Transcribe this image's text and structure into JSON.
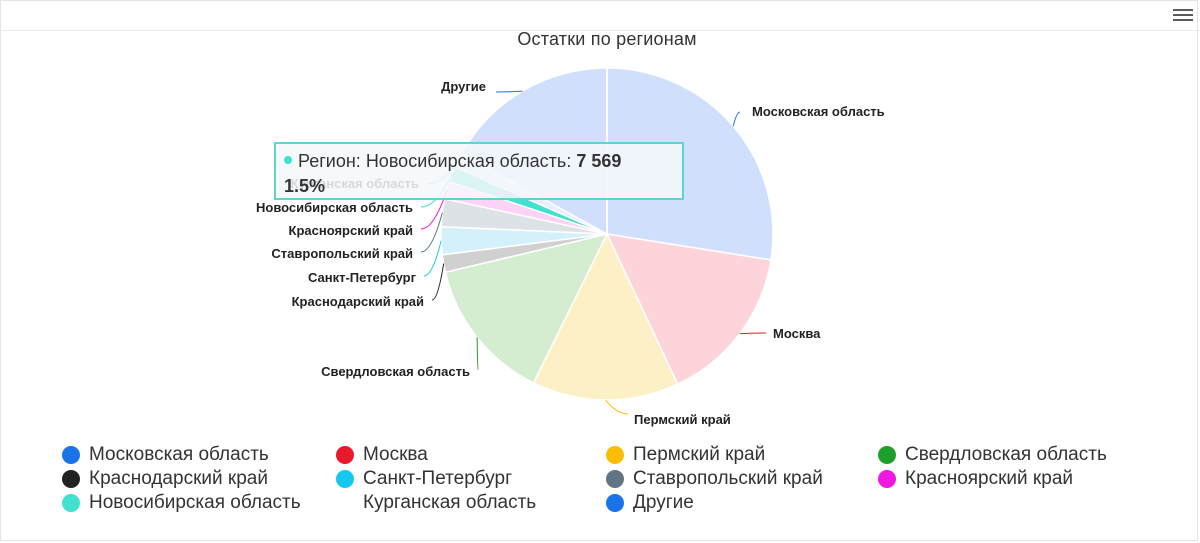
{
  "chart_data": {
    "type": "pie",
    "title": "Остатки по регионам",
    "slices": [
      {
        "label": "Московская область",
        "value": 27.5,
        "fill": "#d0e0fc",
        "legend_color": "#1a73e8"
      },
      {
        "label": "Москва",
        "value": 15.5,
        "fill": "#fcd4d9",
        "legend_color": "#e8192c"
      },
      {
        "label": "Пермский край",
        "value": 14.3,
        "fill": "#fdf0c6",
        "legend_color": "#fbbc05"
      },
      {
        "label": "Свердловская область",
        "value": 14.0,
        "fill": "#d4ecd0",
        "legend_color": "#1e9e2a"
      },
      {
        "label": "Краснодарский край",
        "value": 1.7,
        "fill": "#d0d0d0",
        "legend_color": "#222222"
      },
      {
        "label": "Санкт-Петербург",
        "value": 2.7,
        "fill": "#d3f0fb",
        "legend_color": "#16c8f0"
      },
      {
        "label": "Ставропольский край",
        "value": 2.7,
        "fill": "#dde2e6",
        "legend_color": "#5f7585"
      },
      {
        "label": "Красноярский край",
        "value": 1.7,
        "fill": "#fcd3f7",
        "legend_color": "#ee18e0"
      },
      {
        "label": "Новосибирская область",
        "value": 1.5,
        "fill": "#41e0cf",
        "legend_color": "#41e0cf"
      },
      {
        "label": "Курганская область",
        "value": 1.4,
        "fill": "#e8eefa",
        "legend_color": null
      },
      {
        "label": "Другие",
        "value": 17.0,
        "fill": "#d0e0fc",
        "legend_color": "#1a73e8"
      }
    ],
    "start_angle_deg": 0,
    "legend_placement": "bottom"
  },
  "tooltip": {
    "prefix": "Регион: ",
    "region": "Новосибирская область",
    "separator": ": ",
    "value": "7 569",
    "percent": "1.5%",
    "dot_color": "#41e0cf"
  },
  "legend": [
    {
      "label": "Московская область",
      "color": "#1a73e8"
    },
    {
      "label": "Москва",
      "color": "#e8192c"
    },
    {
      "label": "Пермский край",
      "color": "#fbbc05"
    },
    {
      "label": "Свердловская область",
      "color": "#1e9e2a"
    },
    {
      "label": "Краснодарский край",
      "color": "#222222"
    },
    {
      "label": "Санкт-Петербург",
      "color": "#16c8f0"
    },
    {
      "label": "Ставропольский край",
      "color": "#5f7585"
    },
    {
      "label": "Красноярский край",
      "color": "#ee18e0"
    },
    {
      "label": "Новосибирская область",
      "color": "#41e0cf"
    },
    {
      "label": "Курганская область",
      "color": null
    },
    {
      "label": "Другие",
      "color": "#1a73e8"
    }
  ],
  "menu": {
    "icon": "hamburger-menu-icon"
  }
}
